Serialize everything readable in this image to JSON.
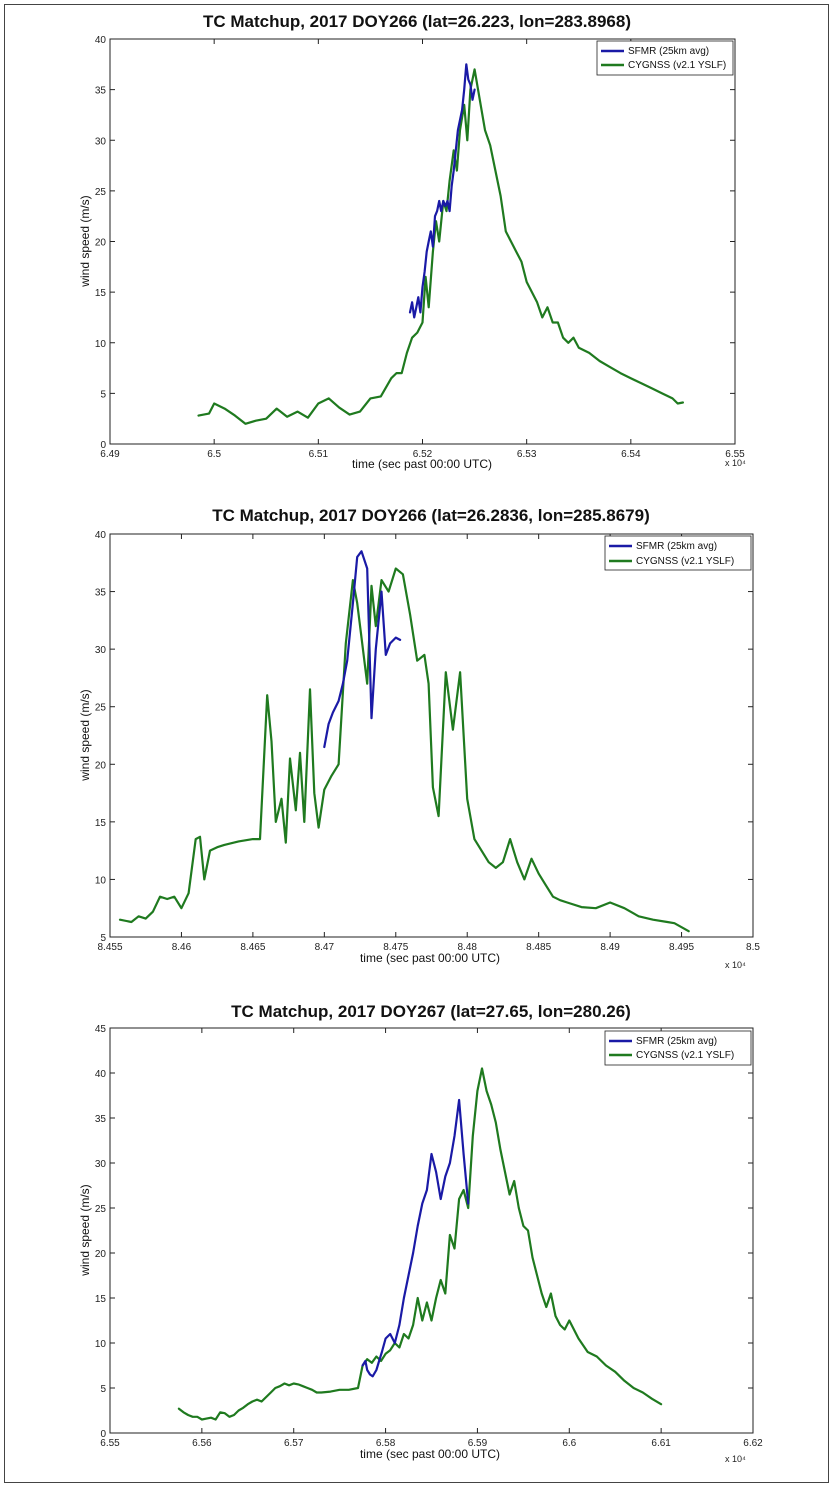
{
  "chart_data": [
    {
      "type": "line",
      "title": "TC Matchup, 2017 DOY266 (lat=26.223, lon=283.8968)",
      "xlabel": "time (sec past 00:00 UTC)",
      "ylabel": "wind speed (m/s)",
      "x_exponent": "x 10⁴",
      "xlim": [
        6.49,
        6.55
      ],
      "ylim": [
        0,
        40
      ],
      "xticks": [
        6.49,
        6.5,
        6.51,
        6.52,
        6.53,
        6.54,
        6.55
      ],
      "xtick_labels": [
        "6.49",
        "6.5",
        "6.51",
        "6.52",
        "6.53",
        "6.54",
        "6.55"
      ],
      "yticks": [
        0,
        5,
        10,
        15,
        20,
        25,
        30,
        35,
        40
      ],
      "ytick_labels": [
        "0",
        "5",
        "10",
        "15",
        "20",
        "25",
        "30",
        "35",
        "40"
      ],
      "legend": "top-right",
      "series": [
        {
          "name": "SFMR (25km avg)",
          "color": "#1a1aa6",
          "x": [
            6.5188,
            6.519,
            6.5192,
            6.5194,
            6.5196,
            6.5198,
            6.52,
            6.5202,
            6.5204,
            6.5206,
            6.5208,
            6.521,
            6.5212,
            6.5214,
            6.5216,
            6.5218,
            6.522,
            6.5222,
            6.5224,
            6.5226,
            6.5228,
            6.523,
            6.5232,
            6.5234,
            6.5236,
            6.5238,
            6.524,
            6.5242,
            6.5244,
            6.5246,
            6.5248,
            6.525
          ],
          "y": [
            13,
            14,
            12.5,
            13.5,
            14.5,
            13,
            15.5,
            17,
            19,
            20,
            21,
            19.5,
            22.5,
            23,
            24,
            23,
            24,
            23.5,
            24,
            23,
            25.5,
            27,
            29,
            31,
            32,
            33,
            35,
            37.5,
            36,
            35.5,
            34,
            35
          ]
        },
        {
          "name": "CYGNSS (v2.1 YSLF)",
          "color": "#1f7a1f",
          "x": [
            6.4985,
            6.4995,
            6.5,
            6.501,
            6.502,
            6.503,
            6.504,
            6.505,
            6.506,
            6.507,
            6.508,
            6.509,
            6.51,
            6.511,
            6.512,
            6.513,
            6.514,
            6.515,
            6.516,
            6.517,
            6.5175,
            6.518,
            6.5185,
            6.519,
            6.5195,
            6.52,
            6.5203,
            6.5206,
            6.521,
            6.5213,
            6.5216,
            6.522,
            6.5223,
            6.5226,
            6.523,
            6.5233,
            6.5236,
            6.524,
            6.5243,
            6.5246,
            6.525,
            6.5255,
            6.526,
            6.5265,
            6.527,
            6.5275,
            6.528,
            6.5285,
            6.529,
            6.5295,
            6.53,
            6.5305,
            6.531,
            6.5315,
            6.532,
            6.5325,
            6.533,
            6.5335,
            6.534,
            6.5345,
            6.535,
            6.536,
            6.537,
            6.538,
            6.539,
            6.54,
            6.541,
            6.542,
            6.543,
            6.544,
            6.5445,
            6.545
          ],
          "y": [
            2.8,
            3.0,
            4.0,
            3.5,
            2.8,
            2.0,
            2.3,
            2.5,
            3.5,
            2.7,
            3.2,
            2.6,
            4.0,
            4.5,
            3.6,
            2.9,
            3.2,
            4.5,
            4.7,
            6.5,
            7.0,
            7.0,
            9.0,
            10.5,
            11.0,
            12.0,
            16.5,
            13.5,
            19.0,
            22.0,
            20.0,
            24.0,
            23.0,
            26.0,
            29.0,
            27.0,
            31.0,
            33.5,
            30.0,
            35.0,
            37.0,
            34.0,
            31.0,
            29.5,
            27.0,
            24.5,
            21.0,
            20.0,
            19.0,
            18.0,
            16.0,
            15.0,
            14.0,
            12.5,
            13.5,
            12.0,
            12.0,
            10.5,
            10.0,
            10.5,
            9.5,
            9.0,
            8.2,
            7.6,
            7.0,
            6.5,
            6.0,
            5.5,
            5.0,
            4.5,
            4.0,
            4.1
          ]
        }
      ]
    },
    {
      "type": "line",
      "title": "TC Matchup, 2017 DOY266 (lat=26.2836, lon=285.8679)",
      "xlabel": "time (sec past 00:00 UTC)",
      "ylabel": "wind speed (m/s)",
      "x_exponent": "x 10⁴",
      "xlim": [
        8.455,
        8.5
      ],
      "ylim": [
        5,
        40
      ],
      "xticks": [
        8.455,
        8.46,
        8.465,
        8.47,
        8.475,
        8.48,
        8.485,
        8.49,
        8.495,
        8.5
      ],
      "xtick_labels": [
        "8.455",
        "8.46",
        "8.465",
        "8.47",
        "8.475",
        "8.48",
        "8.485",
        "8.49",
        "8.495",
        "8.5"
      ],
      "yticks": [
        5,
        10,
        15,
        20,
        25,
        30,
        35,
        40
      ],
      "ytick_labels": [
        "5",
        "10",
        "15",
        "20",
        "25",
        "30",
        "35",
        "40"
      ],
      "legend": "top-right",
      "series": [
        {
          "name": "SFMR (25km avg)",
          "color": "#1a1aa6",
          "x": [
            8.47,
            8.4703,
            8.4706,
            8.471,
            8.4713,
            8.4716,
            8.472,
            8.4723,
            8.4726,
            8.473,
            8.4733,
            8.4736,
            8.474,
            8.4743,
            8.4746,
            8.475,
            8.4753
          ],
          "y": [
            21.5,
            23.5,
            24.5,
            25.5,
            27,
            29,
            34,
            38,
            38.5,
            37,
            24,
            30,
            35,
            29.5,
            30.5,
            31,
            30.8
          ]
        },
        {
          "name": "CYGNSS (v2.1 YSLF)",
          "color": "#1f7a1f",
          "x": [
            8.4557,
            8.4565,
            8.457,
            8.4575,
            8.458,
            8.4585,
            8.459,
            8.4595,
            8.46,
            8.4605,
            8.461,
            8.4613,
            8.4616,
            8.462,
            8.4625,
            8.463,
            8.464,
            8.465,
            8.4655,
            8.466,
            8.4663,
            8.4666,
            8.467,
            8.4673,
            8.4676,
            8.468,
            8.4683,
            8.4686,
            8.469,
            8.4693,
            8.4696,
            8.47,
            8.4705,
            8.471,
            8.4715,
            8.472,
            8.4723,
            8.4726,
            8.473,
            8.4733,
            8.4736,
            8.474,
            8.4745,
            8.475,
            8.4755,
            8.476,
            8.4765,
            8.477,
            8.4773,
            8.4776,
            8.478,
            8.4785,
            8.479,
            8.4795,
            8.48,
            8.4805,
            8.481,
            8.4815,
            8.482,
            8.4825,
            8.483,
            8.4835,
            8.484,
            8.4845,
            8.485,
            8.4855,
            8.486,
            8.4865,
            8.487,
            8.488,
            8.489,
            8.49,
            8.491,
            8.492,
            8.493,
            8.494,
            8.4945,
            8.4955
          ],
          "y": [
            6.5,
            6.3,
            6.8,
            6.6,
            7.2,
            8.5,
            8.3,
            8.5,
            7.5,
            8.8,
            13.5,
            13.7,
            10.0,
            12.5,
            12.8,
            13.0,
            13.3,
            13.5,
            13.5,
            26.0,
            22.0,
            15.0,
            17.0,
            13.2,
            20.5,
            16.0,
            21.0,
            15.0,
            26.5,
            17.5,
            14.5,
            17.8,
            19.0,
            20.0,
            30.5,
            36.0,
            34.0,
            31.0,
            27.0,
            35.5,
            32.0,
            36.0,
            35.0,
            37.0,
            36.5,
            33.0,
            29.0,
            29.5,
            27.0,
            18.0,
            15.5,
            28.0,
            23.0,
            28.0,
            17.0,
            13.5,
            12.5,
            11.5,
            11.0,
            11.5,
            13.5,
            11.5,
            10.0,
            11.8,
            10.5,
            9.5,
            8.5,
            8.2,
            8.0,
            7.6,
            7.5,
            8.0,
            7.5,
            6.8,
            6.5,
            6.3,
            6.2,
            5.5
          ]
        }
      ]
    },
    {
      "type": "line",
      "title": "TC Matchup, 2017 DOY267 (lat=27.65, lon=280.26)",
      "xlabel": "time (sec past 00:00 UTC)",
      "ylabel": "wind speed (m/s)",
      "x_exponent": "x 10⁴",
      "xlim": [
        6.55,
        6.62
      ],
      "ylim": [
        0,
        45
      ],
      "xticks": [
        6.55,
        6.56,
        6.57,
        6.58,
        6.59,
        6.6,
        6.61,
        6.62
      ],
      "xtick_labels": [
        "6.55",
        "6.56",
        "6.57",
        "6.58",
        "6.59",
        "6.6",
        "6.61",
        "6.62"
      ],
      "yticks": [
        0,
        5,
        10,
        15,
        20,
        25,
        30,
        35,
        40,
        45
      ],
      "ytick_labels": [
        "0",
        "5",
        "10",
        "15",
        "20",
        "25",
        "30",
        "35",
        "40",
        "45"
      ],
      "legend": "top-right",
      "series": [
        {
          "name": "SFMR (25km avg)",
          "color": "#1a1aa6",
          "x": [
            6.5775,
            6.5778,
            6.578,
            6.5783,
            6.5786,
            6.579,
            6.5793,
            6.5796,
            6.58,
            6.5805,
            6.581,
            6.5815,
            6.582,
            6.5825,
            6.583,
            6.5835,
            6.584,
            6.5845,
            6.585,
            6.5855,
            6.586,
            6.5865,
            6.587,
            6.5875,
            6.588,
            6.5885,
            6.589
          ],
          "y": [
            7.5,
            8.0,
            7.0,
            6.5,
            6.3,
            7.0,
            8.0,
            9.0,
            10.5,
            11.0,
            10.0,
            12.0,
            15.0,
            17.5,
            20.0,
            23.0,
            25.5,
            27.0,
            31.0,
            29.0,
            26.0,
            28.5,
            30.0,
            33.0,
            37.0,
            31.0,
            25.5
          ]
        },
        {
          "name": "CYGNSS (v2.1 YSLF)",
          "color": "#1f7a1f",
          "x": [
            6.5575,
            6.558,
            6.5585,
            6.559,
            6.5595,
            6.56,
            6.5605,
            6.561,
            6.5615,
            6.562,
            6.5625,
            6.563,
            6.5635,
            6.564,
            6.5645,
            6.565,
            6.5655,
            6.566,
            6.5665,
            6.567,
            6.5675,
            6.568,
            6.5685,
            6.569,
            6.5695,
            6.57,
            6.5705,
            6.571,
            6.5715,
            6.572,
            6.5725,
            6.573,
            6.574,
            6.575,
            6.576,
            6.577,
            6.5775,
            6.578,
            6.5785,
            6.579,
            6.5795,
            6.58,
            6.5805,
            6.581,
            6.5815,
            6.582,
            6.5825,
            6.583,
            6.5835,
            6.584,
            6.5845,
            6.585,
            6.5855,
            6.586,
            6.5865,
            6.587,
            6.5875,
            6.588,
            6.5885,
            6.589,
            6.5895,
            6.59,
            6.5905,
            6.591,
            6.5915,
            6.592,
            6.5925,
            6.593,
            6.5935,
            6.594,
            6.5945,
            6.595,
            6.5955,
            6.596,
            6.5965,
            6.597,
            6.5975,
            6.598,
            6.5985,
            6.599,
            6.5995,
            6.6,
            6.601,
            6.602,
            6.603,
            6.604,
            6.605,
            6.606,
            6.607,
            6.608,
            6.609,
            6.61
          ],
          "y": [
            2.7,
            2.3,
            2.0,
            1.8,
            1.8,
            1.5,
            1.6,
            1.7,
            1.5,
            2.3,
            2.2,
            1.8,
            2.0,
            2.5,
            2.8,
            3.2,
            3.5,
            3.7,
            3.5,
            4.0,
            4.5,
            5.0,
            5.2,
            5.5,
            5.3,
            5.5,
            5.4,
            5.2,
            5.0,
            4.8,
            4.5,
            4.5,
            4.6,
            4.8,
            4.8,
            5.0,
            7.5,
            8.2,
            7.8,
            8.5,
            8.0,
            8.8,
            9.2,
            10.0,
            9.5,
            11.0,
            10.5,
            12.0,
            15.0,
            12.5,
            14.5,
            12.5,
            15.0,
            17.0,
            15.5,
            22.0,
            20.5,
            26.0,
            27.0,
            25.0,
            33.0,
            38.0,
            40.5,
            38.0,
            36.5,
            34.5,
            31.5,
            29.0,
            26.5,
            28.0,
            25.0,
            23.0,
            22.5,
            19.5,
            17.5,
            15.5,
            14.0,
            15.5,
            13.0,
            12.0,
            11.5,
            12.5,
            10.5,
            9.0,
            8.5,
            7.5,
            6.8,
            5.8,
            5.0,
            4.5,
            3.8,
            3.2
          ]
        }
      ]
    }
  ]
}
